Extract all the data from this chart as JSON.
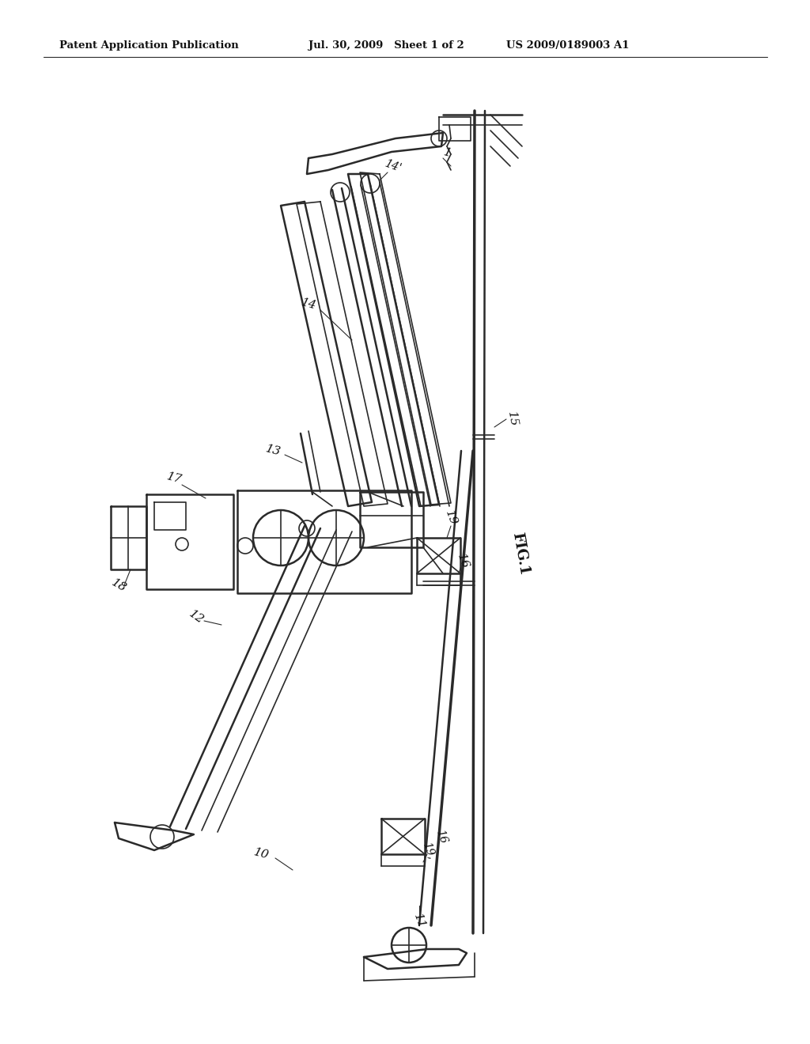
{
  "header_left": "Patent Application Publication",
  "header_mid": "Jul. 30, 2009   Sheet 1 of 2",
  "header_right": "US 2009/0189003 A1",
  "bg_color": "#ffffff",
  "line_color": "#2a2a2a",
  "text_color": "#111111",
  "header_fontsize": 9.5,
  "label_fontsize": 11,
  "fig_label_fontsize": 12
}
